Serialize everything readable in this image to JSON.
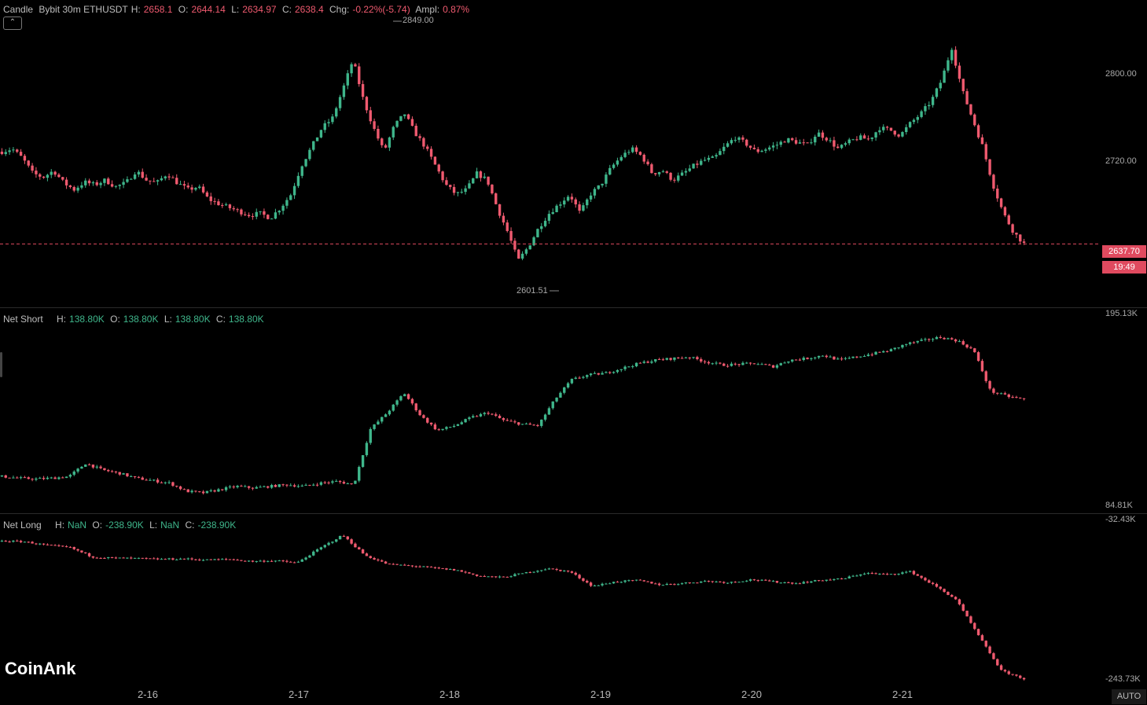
{
  "header": {
    "pane1": {
      "name": "Candle",
      "symbol": "Bybit 30m ETHUSDT",
      "h_label": "H:",
      "h": "2658.1",
      "o_label": "O:",
      "o": "2644.14",
      "l_label": "L:",
      "l": "2634.97",
      "c_label": "C:",
      "c": "2638.4",
      "chg_label": "Chg:",
      "chg": "-0.22%(-5.74)",
      "ampl_label": "Ampl:",
      "ampl": "0.87%"
    },
    "pane2": {
      "name": "Net Short",
      "h_label": "H:",
      "h": "138.80K",
      "o_label": "O:",
      "o": "138.80K",
      "l_label": "L:",
      "l": "138.80K",
      "c_label": "C:",
      "c": "138.80K"
    },
    "pane3": {
      "name": "Net Long",
      "h_label": "H:",
      "h": "NaN",
      "o_label": "O:",
      "o": "-238.90K",
      "l_label": "L:",
      "l": "NaN",
      "c_label": "C:",
      "c": "-238.90K"
    }
  },
  "collapse_icon": "chevron-up-icon",
  "brand": "CoinAnk",
  "auto_label": "AUTO",
  "axis": {
    "pane1_ticks": [
      "2800.00",
      "2720.00"
    ],
    "pane1_high": "2849.00",
    "pane1_low": "2601.51",
    "last_price": "2637.70",
    "countdown": "19:49",
    "pane2_top": "195.13K",
    "pane2_bottom": "84.81K",
    "pane3_top": "-32.43K",
    "pane3_bottom": "-243.73K"
  },
  "colors": {
    "up": "#3fb68b",
    "down": "#ef5a6f",
    "bg": "#000000"
  },
  "chart_data": [
    {
      "type": "candlestick",
      "title": "Bybit 30m ETHUSDT",
      "x": [
        "2-16",
        "2-17",
        "2-18",
        "2-19",
        "2-20",
        "2-21"
      ],
      "ylim": [
        2590,
        2870
      ],
      "y_ticks": [
        2720,
        2800
      ],
      "high": 2849.0,
      "low": 2601.51,
      "last": 2637.7,
      "close_path": [
        2735,
        2738,
        2728,
        2712,
        2708,
        2715,
        2702,
        2695,
        2703,
        2700,
        2705,
        2698,
        2702,
        2715,
        2705,
        2702,
        2712,
        2702,
        2695,
        2698,
        2685,
        2680,
        2676,
        2672,
        2668,
        2670,
        2665,
        2676,
        2690,
        2720,
        2740,
        2760,
        2770,
        2800,
        2832,
        2790,
        2760,
        2735,
        2762,
        2775,
        2755,
        2740,
        2720,
        2700,
        2690,
        2695,
        2712,
        2705,
        2675,
        2650,
        2620,
        2635,
        2655,
        2670,
        2680,
        2690,
        2670,
        2690,
        2700,
        2718,
        2730,
        2738,
        2730,
        2712,
        2715,
        2705,
        2712,
        2720,
        2726,
        2728,
        2740,
        2750,
        2744,
        2735,
        2738,
        2742,
        2748,
        2745,
        2742,
        2755,
        2748,
        2738,
        2745,
        2750,
        2748,
        2760,
        2758,
        2752,
        2765,
        2775,
        2788,
        2810,
        2845,
        2800,
        2770,
        2740,
        2700,
        2670,
        2650,
        2638
      ]
    },
    {
      "type": "candlestick",
      "title": "Net Short",
      "ylim": [
        84810,
        195130
      ],
      "close_path": [
        101000,
        100000,
        99500,
        100000,
        101000,
        109000,
        105000,
        103000,
        100000,
        98500,
        97000,
        92000,
        91000,
        93000,
        95000,
        94000,
        95000,
        96000,
        95000,
        97000,
        98000,
        96000,
        130000,
        140000,
        152000,
        138000,
        129000,
        132000,
        137000,
        140000,
        135000,
        133000,
        132000,
        148000,
        160000,
        163000,
        164000,
        167000,
        170000,
        172000,
        173000,
        174000,
        171000,
        169000,
        169500,
        170000,
        168000,
        172000,
        173000,
        175000,
        172000,
        174000,
        176000,
        178000,
        182000,
        184000,
        186000,
        184000,
        178000,
        153000,
        150000,
        148000
      ]
    },
    {
      "type": "candlestick",
      "title": "Net Long",
      "ylim": [
        -243730,
        -32430
      ],
      "close_path": [
        -50000,
        -51000,
        -56000,
        -59000,
        -72000,
        -73500,
        -74000,
        -75000,
        -74500,
        -76000,
        -75000,
        -78000,
        -77000,
        -80000,
        -60000,
        -42000,
        -70000,
        -82000,
        -84000,
        -87000,
        -90000,
        -98000,
        -100000,
        -94000,
        -88000,
        -92000,
        -112000,
        -106000,
        -104000,
        -110000,
        -108000,
        -105000,
        -107000,
        -103000,
        -106000,
        -108000,
        -104000,
        -102000,
        -94000,
        -96000,
        -92000,
        -110000,
        -130000,
        -180000,
        -228000,
        -239000
      ]
    }
  ]
}
